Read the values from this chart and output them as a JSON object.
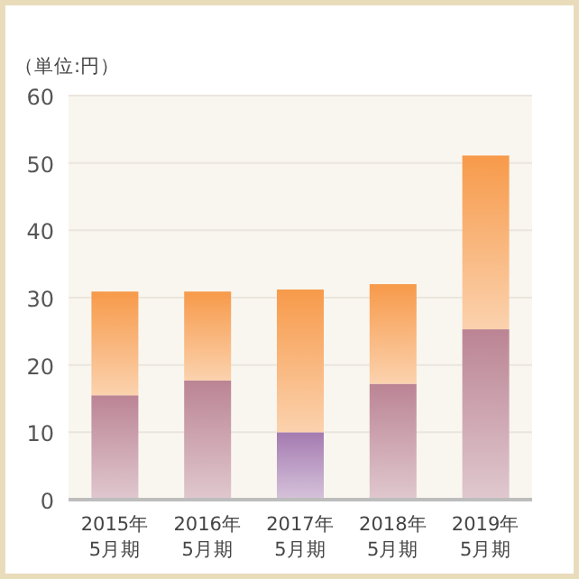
{
  "chart_data": {
    "type": "bar",
    "stacked": true,
    "annotations": [
      "（単位:円）"
    ],
    "categories": [
      "2015年\n5月期",
      "2016年\n5月期",
      "2017年\n5月期",
      "2018年\n5月期",
      "2019年\n5月期"
    ],
    "series": [
      {
        "colors": [
          "#bb8494",
          "#bb8494",
          "#a47ab0",
          "#bb8494",
          "#bb8494"
        ],
        "values": [
          15.5,
          17.7,
          10.0,
          17.2,
          25.3
        ]
      },
      {
        "color": "#f79a4a",
        "values": [
          15.4,
          13.2,
          21.2,
          14.8,
          25.8
        ]
      }
    ],
    "ylim": [
      0,
      60
    ],
    "yticks": [
      0,
      10,
      20,
      30,
      40,
      50,
      60
    ],
    "grid": "y"
  }
}
